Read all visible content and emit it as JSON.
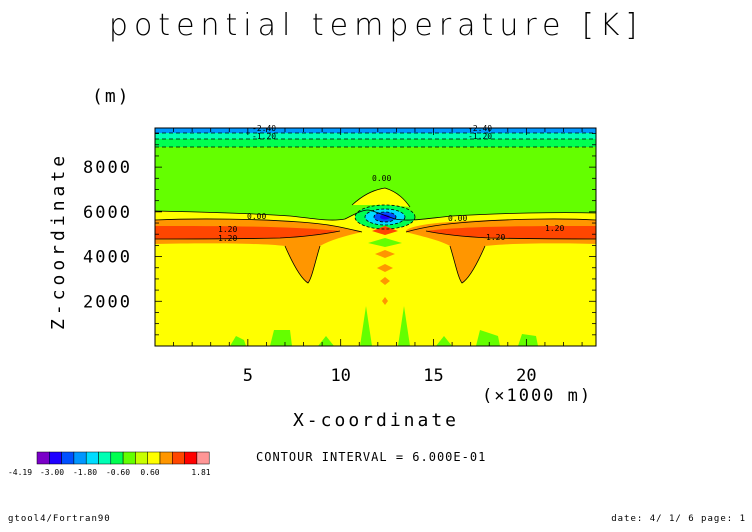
{
  "chart_data": {
    "type": "contour",
    "title": "potential temperature [K]",
    "xlabel": "X-coordinate",
    "ylabel": "Z-coordinate",
    "x_unit": "(×1000 m)",
    "y_unit": "(m)",
    "xlim": [
      0,
      23.75
    ],
    "ylim": [
      0,
      9750
    ],
    "x_ticks": [
      5,
      10,
      15,
      20
    ],
    "y_ticks": [
      2000,
      4000,
      6000,
      8000
    ],
    "x_tick_labels": [
      "5",
      "10",
      "15",
      "20"
    ],
    "y_tick_labels": [
      "2000",
      "4000",
      "6000",
      "8000"
    ],
    "contour_interval_text": "CONTOUR INTERVAL = 6.000E-01",
    "contour_labels": [
      "-2.40",
      "-1.20",
      "0.00",
      "1.20"
    ],
    "colorbar": {
      "colors": [
        "#7a00c8",
        "#1e00ff",
        "#0050ff",
        "#0096ff",
        "#00dcff",
        "#00ffb4",
        "#00ff50",
        "#64ff00",
        "#c8ff00",
        "#ffff00",
        "#ff9600",
        "#ff4600",
        "#ff0000",
        "#ff9696"
      ],
      "labels": [
        "-4.19",
        "-3.00",
        "-1.80",
        "-0.60",
        "0.60",
        "1.81"
      ]
    },
    "grid": false,
    "legend": "bottom-left colorbar"
  },
  "footer": {
    "left": "gtool4/Fortran90",
    "right": "date: 4/ 1/ 6 page: 1"
  }
}
